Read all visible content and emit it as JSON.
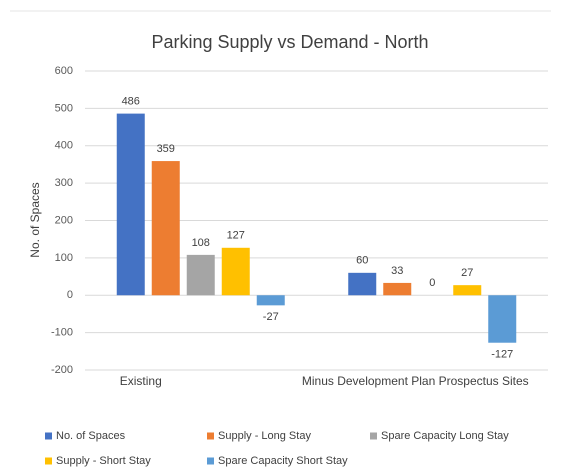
{
  "chart_data": {
    "type": "bar",
    "title": "Parking Supply vs Demand - North",
    "y_label": "No. of Spaces",
    "categories": [
      "Existing",
      "Minus Development Plan Prospectus  Sites"
    ],
    "series": [
      {
        "name": "No. of Spaces",
        "color": "#4472c4",
        "values": [
          486,
          60
        ]
      },
      {
        "name": "Supply - Long Stay",
        "color": "#ed7d31",
        "values": [
          359,
          33
        ]
      },
      {
        "name": "Spare Capacity Long Stay",
        "color": "#a5a5a5",
        "values": [
          108,
          0
        ]
      },
      {
        "name": "Supply - Short Stay",
        "color": "#ffc000",
        "values": [
          127,
          27
        ]
      },
      {
        "name": "Spare Capacity Short Stay",
        "color": "#5b9bd5",
        "values": [
          -27,
          -127
        ]
      }
    ],
    "ylim": [
      -200,
      600
    ],
    "yticks": [
      -200,
      -100,
      0,
      100,
      200,
      300,
      400,
      500,
      600
    ],
    "grid": true,
    "legend": "bottom"
  }
}
